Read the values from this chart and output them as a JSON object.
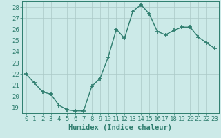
{
  "x": [
    0,
    1,
    2,
    3,
    4,
    5,
    6,
    7,
    8,
    9,
    10,
    11,
    12,
    13,
    14,
    15,
    16,
    17,
    18,
    19,
    20,
    21,
    22,
    23
  ],
  "y": [
    22.0,
    21.2,
    20.4,
    20.2,
    19.2,
    18.8,
    18.7,
    18.7,
    20.9,
    21.6,
    23.5,
    26.0,
    25.2,
    27.6,
    28.2,
    27.4,
    25.8,
    25.5,
    25.9,
    26.2,
    26.2,
    25.3,
    24.8,
    24.3
  ],
  "line_color": "#2e7d6e",
  "marker": "+",
  "marker_size": 5,
  "marker_lw": 1.2,
  "bg_color": "#cceae8",
  "grid_color": "#aac8c6",
  "xlabel": "Humidex (Indice chaleur)",
  "xlabel_fontsize": 7.5,
  "tick_fontsize": 6.5,
  "ylim": [
    18.5,
    28.5
  ],
  "yticks": [
    19,
    20,
    21,
    22,
    23,
    24,
    25,
    26,
    27,
    28
  ],
  "xlim": [
    -0.5,
    23.5
  ],
  "xticks": [
    0,
    1,
    2,
    3,
    4,
    5,
    6,
    7,
    8,
    9,
    10,
    11,
    12,
    13,
    14,
    15,
    16,
    17,
    18,
    19,
    20,
    21,
    22,
    23
  ],
  "spine_color": "#2e7d6e",
  "line_width": 1.0
}
